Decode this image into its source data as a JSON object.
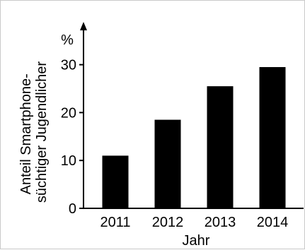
{
  "chart_data": {
    "type": "bar",
    "title": "",
    "categories": [
      "2011",
      "2012",
      "2013",
      "2014"
    ],
    "values": [
      11,
      18.5,
      25.5,
      29.5
    ],
    "xlabel": "Jahr",
    "ylabel": [
      "Anteil Smartphone-",
      "süchtiger Jugendlicher"
    ],
    "y_unit": "%",
    "ylim": [
      0,
      35
    ],
    "yticks": [
      0,
      10,
      20,
      30
    ],
    "ytick_labels": [
      "0",
      "10",
      "20",
      "30"
    ],
    "grid": false,
    "legend": "none",
    "bar_color": "#000000"
  }
}
